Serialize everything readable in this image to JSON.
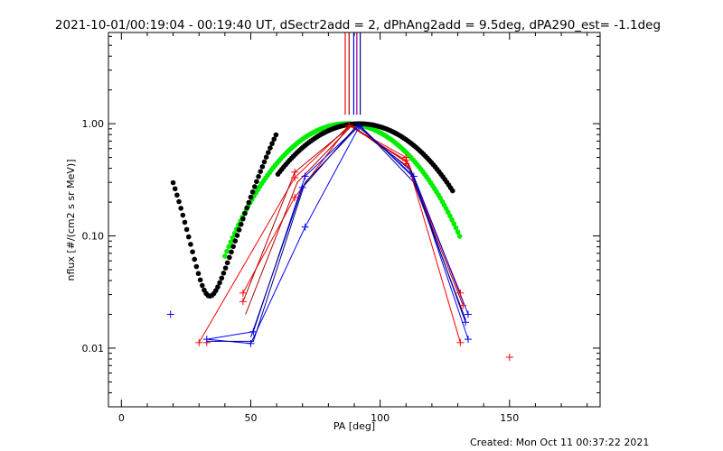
{
  "chart_data": {
    "type": "scatter",
    "title": "2021-10-01/00:19:04 - 00:19:40 UT, dSectr2add = 2, dPhAng2add = 9.5deg, dPA290_est= -1.1deg",
    "xlabel": "PA [deg]",
    "ylabel": "nflux [#/(cm2 s sr MeV)]",
    "xlim": [
      -5,
      185
    ],
    "ylim": [
      0.003,
      6.5
    ],
    "yscale": "log",
    "grid": false,
    "x_ticks": [
      {
        "value": 0,
        "label": "0"
      },
      {
        "value": 50,
        "label": "50"
      },
      {
        "value": 100,
        "label": "100"
      },
      {
        "value": 150,
        "label": "150"
      }
    ],
    "x_minor_step": 10,
    "y_ticks": [
      {
        "value": 0.01,
        "label": "0.01"
      },
      {
        "value": 0.1,
        "label": "0.10"
      },
      {
        "value": 1,
        "label": "1.00"
      }
    ],
    "colors": {
      "red": "#ff0000",
      "darkred": "#b00000",
      "blue": "#0000ff",
      "navy": "#00008b",
      "purple": "#8b008b",
      "green": "#00ee00",
      "black": "#000000"
    },
    "lines": [
      {
        "color": "#ff0000",
        "points": [
          [
            30,
            0.0112
          ],
          [
            67,
            0.33
          ],
          [
            88,
            0.96
          ],
          [
            110,
            0.47
          ],
          [
            131,
            0.031
          ]
        ]
      },
      {
        "color": "#ff0000",
        "points": [
          [
            47,
            0.031
          ],
          [
            67,
            0.22
          ],
          [
            88,
            0.96
          ],
          [
            110,
            0.5
          ],
          [
            131,
            0.0112
          ]
        ]
      },
      {
        "color": "#b00000",
        "points": [
          [
            47,
            0.026
          ],
          [
            67,
            0.37
          ],
          [
            89,
            0.97
          ],
          [
            111,
            0.41
          ],
          [
            132,
            0.024
          ]
        ]
      },
      {
        "color": "#b00000",
        "points": [
          [
            48,
            0.02
          ],
          [
            68,
            0.3
          ],
          [
            89,
            0.96
          ],
          [
            111,
            0.44
          ],
          [
            132,
            0.026
          ]
        ]
      },
      {
        "color": "#0000ff",
        "points": [
          [
            33,
            0.012
          ],
          [
            50,
            0.011
          ],
          [
            71,
            0.12
          ],
          [
            92,
            0.95
          ],
          [
            113,
            0.34
          ],
          [
            134,
            0.02
          ]
        ]
      },
      {
        "color": "#0000ff",
        "points": [
          [
            33,
            0.012
          ],
          [
            51,
            0.014
          ],
          [
            71,
            0.34
          ],
          [
            92,
            0.97
          ],
          [
            113,
            0.33
          ],
          [
            134,
            0.012
          ]
        ]
      },
      {
        "color": "#00008b",
        "points": [
          [
            33,
            0.0115
          ],
          [
            51,
            0.0115
          ],
          [
            71,
            0.3
          ],
          [
            92,
            0.97
          ],
          [
            113,
            0.3
          ],
          [
            133,
            0.018
          ]
        ]
      },
      {
        "color": "#00008b",
        "points": [
          [
            50,
            0.0125
          ],
          [
            70,
            0.27
          ],
          [
            91,
            0.96
          ],
          [
            112,
            0.38
          ],
          [
            133,
            0.017
          ]
        ]
      }
    ],
    "red_markers": [
      [
        30,
        0.0112
      ],
      [
        33,
        0.0112
      ],
      [
        47,
        0.031
      ],
      [
        47,
        0.026
      ],
      [
        67,
        0.33
      ],
      [
        67,
        0.22
      ],
      [
        67,
        0.37
      ],
      [
        88,
        0.96
      ],
      [
        110,
        0.47
      ],
      [
        110,
        0.5
      ],
      [
        110,
        0.44
      ],
      [
        131,
        0.031
      ],
      [
        131,
        0.0112
      ],
      [
        132,
        0.024
      ],
      [
        150,
        0.0083
      ]
    ],
    "blue_markers": [
      [
        19,
        0.02
      ],
      [
        33,
        0.012
      ],
      [
        50,
        0.011
      ],
      [
        51,
        0.014
      ],
      [
        70,
        0.27
      ],
      [
        71,
        0.12
      ],
      [
        71,
        0.34
      ],
      [
        92,
        0.95
      ],
      [
        113,
        0.34
      ],
      [
        134,
        0.02
      ],
      [
        134,
        0.012
      ],
      [
        133,
        0.017
      ]
    ],
    "vertical_markers": [
      {
        "x": 86.5,
        "color": "#ff0000"
      },
      {
        "x": 88.0,
        "color": "#b00000"
      },
      {
        "x": 89.8,
        "color": "#0000ff"
      },
      {
        "x": 91.0,
        "color": "#8b008b"
      },
      {
        "x": 92.3,
        "color": "#00008b"
      }
    ],
    "vertical_marker_range": [
      1.2,
      6.5
    ],
    "green_curve": {
      "color": "#00ee00",
      "center": 87,
      "amplitude": 1.0,
      "power": 7.1,
      "x_range": [
        40,
        131
      ]
    },
    "black_curve": {
      "color": "#000000",
      "center": 92,
      "amplitude": 1.0,
      "power": 6.5,
      "floor": 0.0066,
      "floor_center": 38.5,
      "floor_width": 6.5,
      "floor_power": 6.9,
      "x_range": [
        20,
        128
      ]
    }
  },
  "footer": {
    "created": "Created: Mon Oct 11 00:37:22 2021"
  }
}
